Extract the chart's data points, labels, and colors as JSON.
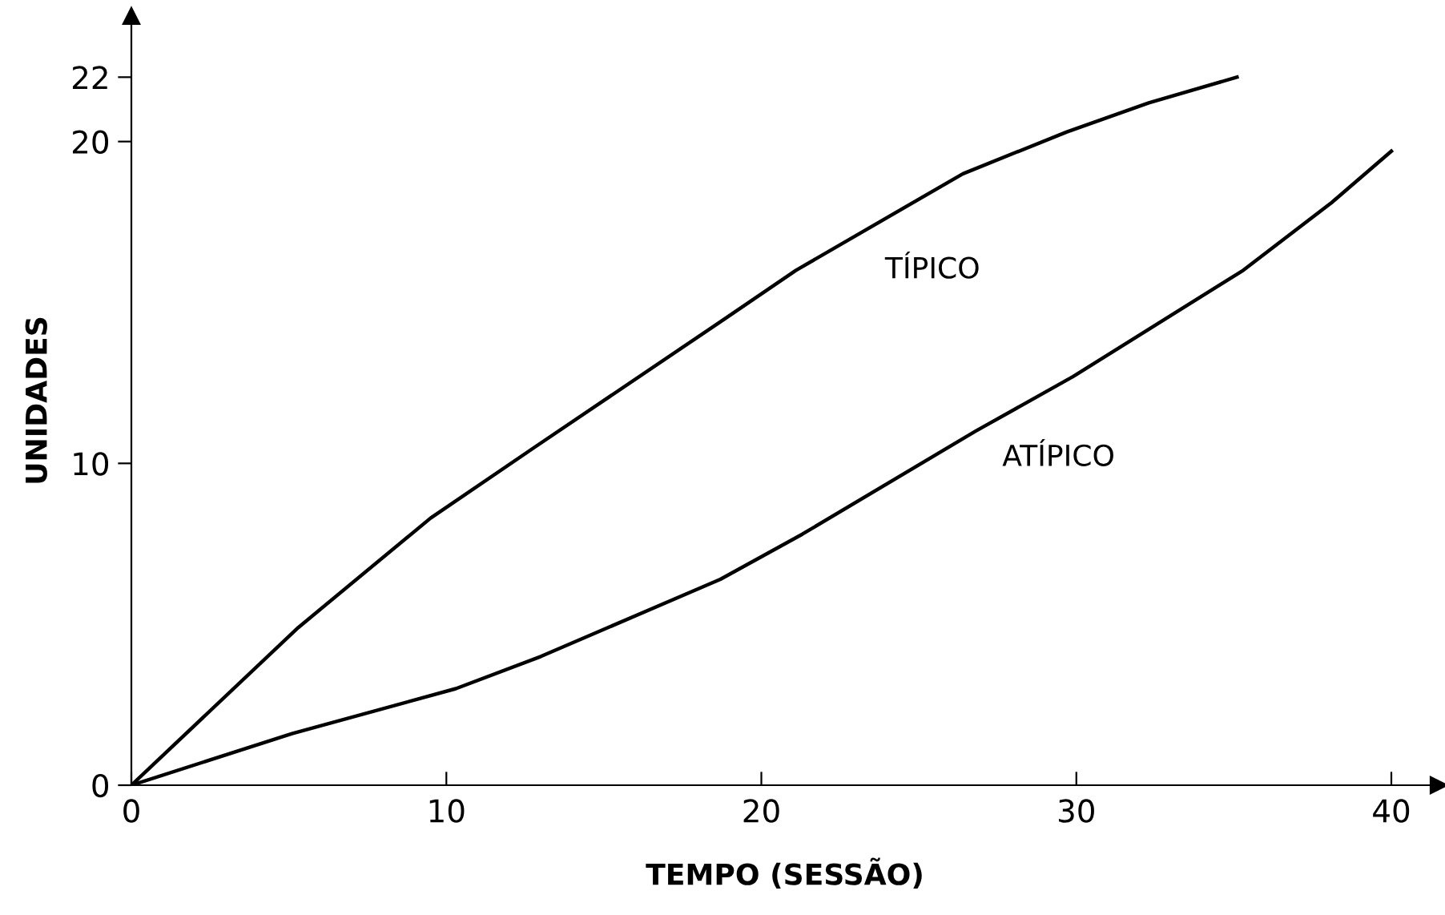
{
  "chart_data": {
    "type": "line",
    "xlabel": "TEMPO (SESSÃO)",
    "ylabel": "UNIDADES",
    "xlim": [
      0,
      41.5
    ],
    "ylim": [
      0,
      23.9
    ],
    "xticks": [
      0,
      10,
      20,
      30,
      40
    ],
    "yticks": [
      0,
      10,
      20,
      22
    ],
    "grid": false,
    "marker": "none",
    "line_style": "solid",
    "series": [
      {
        "name": "TÍPICO",
        "color": "#000000",
        "x": [
          0,
          5.3,
          9.5,
          12.8,
          18.7,
          21.1,
          26.4,
          29.7,
          32.3,
          35.1
        ],
        "values": [
          0,
          4.9,
          8.3,
          10.5,
          14.4,
          16.0,
          19.0,
          20.3,
          21.2,
          22.0
        ]
      },
      {
        "name": "ATÍPICO",
        "color": "#000000",
        "x": [
          0,
          5.1,
          10.3,
          13.0,
          18.7,
          21.3,
          26.8,
          29.9,
          35.3,
          38.1,
          40.0
        ],
        "values": [
          0,
          1.6,
          3.0,
          4.0,
          6.4,
          7.8,
          11.0,
          12.7,
          16.0,
          18.1,
          19.7
        ]
      }
    ]
  }
}
